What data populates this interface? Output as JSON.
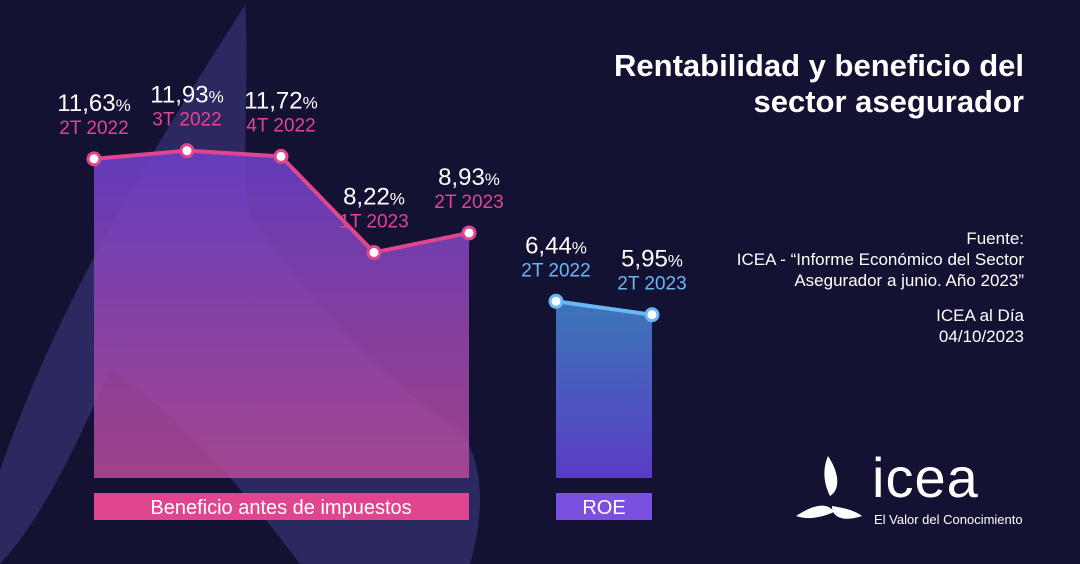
{
  "title": "Rentabilidad y beneficio del sector asegurador",
  "source": {
    "label": "Fuente:",
    "text": "ICEA - “Informe Económico del Sector Asegurador a junio. Año 2023”",
    "publication": "ICEA al Día",
    "date": "04/10/2023"
  },
  "logo": {
    "name": "icea",
    "tagline": "El Valor del Conocimiento"
  },
  "colors": {
    "background": "#141233",
    "beneficio": "#e0468f",
    "roe": "#6ab7f5",
    "roe_label_bg": "#7b4fe0"
  },
  "chart_data": [
    {
      "type": "area",
      "label": "Beneficio antes de impuestos",
      "unit": "%",
      "categories": [
        "2T 2022",
        "3T 2022",
        "4T 2022",
        "1T 2023",
        "2T 2023"
      ],
      "values": [
        11.63,
        11.93,
        11.72,
        8.22,
        8.93
      ],
      "value_labels": [
        "11,63",
        "11,93",
        "11,72",
        "8,22",
        "8,93"
      ]
    },
    {
      "type": "area",
      "label": "ROE",
      "unit": "%",
      "categories": [
        "2T 2022",
        "2T 2023"
      ],
      "values": [
        6.44,
        5.95
      ],
      "value_labels": [
        "6,44",
        "5,95"
      ]
    }
  ]
}
